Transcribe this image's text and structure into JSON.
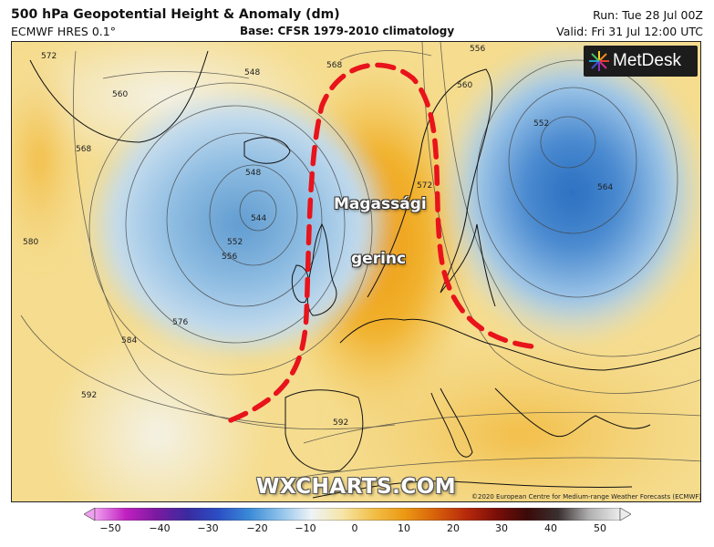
{
  "header": {
    "title": "500 hPa Geopotential Height & Anomaly (dm)",
    "model": "ECMWF HRES 0.1°",
    "base": "Base: CFSR 1979-2010 climatology",
    "run": "Run: Tue 28 Jul 00Z",
    "valid": "Valid: Fri 31 Jul 12:00 UTC"
  },
  "map": {
    "contour_labels": [
      "572",
      "548",
      "560",
      "568",
      "548",
      "544",
      "552",
      "556",
      "580",
      "576",
      "584",
      "592",
      "568",
      "572",
      "560",
      "556",
      "552",
      "564",
      "592"
    ],
    "ridge_label_line1": "Magassági",
    "ridge_label_line2": "gerinc",
    "ridge_outline_color": "#e8131b",
    "watermark": "WXCHARTS.COM",
    "copyright": "©2020 European Centre for Medium-range Weather Forecasts (ECMWF)"
  },
  "branding": {
    "logo_text": "MetDesk",
    "logo_icon": "metdesk-burst-icon"
  },
  "colorbar": {
    "ticks": [
      "−50",
      "−40",
      "−30",
      "−20",
      "−10",
      "0",
      "10",
      "20",
      "30",
      "40",
      "50"
    ],
    "stops": [
      "#f0a0f0",
      "#c020c0",
      "#7a1aa0",
      "#3a2aa0",
      "#2b4fc4",
      "#3a8ad8",
      "#8ec2ea",
      "#eef3f7",
      "#f6e6a8",
      "#f2c04a",
      "#ec9a14",
      "#d8620a",
      "#b82a0a",
      "#7a0e08",
      "#3a0a08",
      "#3a3030",
      "#b0b0b0",
      "#ececec"
    ]
  }
}
